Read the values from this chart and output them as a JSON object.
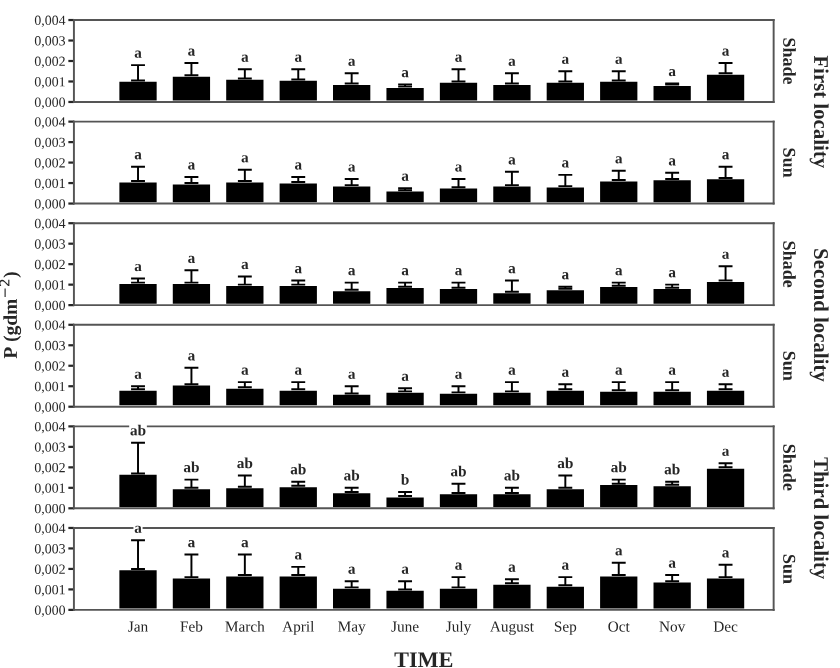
{
  "chart_data": [
    {
      "type": "bar",
      "categories": [
        null,
        null,
        null,
        null,
        null,
        null,
        null,
        null,
        null,
        null,
        null,
        null
      ],
      "color": "#000000",
      "tick_labels": "y",
      "values": [
        0.00105,
        0.0013,
        0.00115,
        0.0011,
        0.0009,
        0.00075,
        0.001,
        0.0009,
        0.001,
        0.00105,
        0.00085,
        0.0014
      ],
      "errors": [
        [
          0.00105,
          0.0018
        ],
        [
          0.0013,
          0.0019
        ],
        [
          0.00115,
          0.0016
        ],
        [
          0.0011,
          0.0016
        ],
        [
          0.0009,
          0.0014
        ],
        [
          0.00075,
          0.00085
        ],
        [
          0.001,
          0.0016
        ],
        [
          0.0009,
          0.0014
        ],
        [
          0.001,
          0.0015
        ],
        [
          0.00105,
          0.0015
        ],
        [
          0.00085,
          0.0009
        ],
        [
          0.0014,
          0.0019
        ]
      ],
      "value_labels": [
        "a",
        "a",
        "a",
        "a",
        "a",
        "a",
        "a",
        "a",
        "a",
        "a",
        "a",
        "a"
      ],
      "ylim": [
        0,
        0.004
      ],
      "yticks": [
        {
          "value": 0,
          "label": "0,000"
        },
        {
          "value": 0.001,
          "label": "0,001"
        },
        {
          "value": 0.002,
          "label": "0,002"
        },
        {
          "value": 0.003,
          "label": "0,003"
        },
        {
          "value": 0.004,
          "label": "0,004"
        }
      ],
      "annotations": [
        "Shade",
        "First locality"
      ]
    },
    {
      "type": "bar",
      "categories": [
        null,
        null,
        null,
        null,
        null,
        null,
        null,
        null,
        null,
        null,
        null,
        null
      ],
      "color": "#000000",
      "tick_labels": "y",
      "values": [
        0.0011,
        0.001,
        0.0011,
        0.00105,
        0.0009,
        0.00065,
        0.0008,
        0.0009,
        0.00085,
        0.00115,
        0.0012,
        0.00125
      ],
      "errors": [
        [
          0.0011,
          0.0018
        ],
        [
          0.001,
          0.0013
        ],
        [
          0.0011,
          0.00165
        ],
        [
          0.00105,
          0.0013
        ],
        [
          0.0009,
          0.0012
        ],
        [
          0.00065,
          0.00075
        ],
        [
          0.0008,
          0.0012
        ],
        [
          0.0009,
          0.00155
        ],
        [
          0.00085,
          0.0014
        ],
        [
          0.00115,
          0.0016
        ],
        [
          0.0012,
          0.0015
        ],
        [
          0.00125,
          0.0018
        ]
      ],
      "value_labels": [
        "a",
        "a",
        "a",
        "a",
        "a",
        "a",
        "a",
        "a",
        "a",
        "a",
        "a",
        "a"
      ],
      "ylim": [
        0,
        0.004
      ],
      "yticks": [
        {
          "value": 0,
          "label": "0,000"
        },
        {
          "value": 0.001,
          "label": "0,001"
        },
        {
          "value": 0.002,
          "label": "0,002"
        },
        {
          "value": 0.003,
          "label": "0,003"
        },
        {
          "value": 0.004,
          "label": "0,004"
        }
      ],
      "annotations": [
        "Sun"
      ]
    },
    {
      "type": "bar",
      "categories": [
        null,
        null,
        null,
        null,
        null,
        null,
        null,
        null,
        null,
        null,
        null,
        null
      ],
      "color": "#000000",
      "tick_labels": "y",
      "values": [
        0.0011,
        0.0011,
        0.001,
        0.001,
        0.00075,
        0.0009,
        0.00085,
        0.00065,
        0.0008,
        0.00095,
        0.00085,
        0.0012
      ],
      "errors": [
        [
          0.0011,
          0.0013
        ],
        [
          0.0011,
          0.0017
        ],
        [
          0.001,
          0.0014
        ],
        [
          0.001,
          0.0012
        ],
        [
          0.00075,
          0.0011
        ],
        [
          0.0009,
          0.0011
        ],
        [
          0.00085,
          0.0011
        ],
        [
          0.00065,
          0.0012
        ],
        [
          0.0008,
          0.0009
        ],
        [
          0.00095,
          0.0011
        ],
        [
          0.00085,
          0.001
        ],
        [
          0.0012,
          0.0019
        ]
      ],
      "value_labels": [
        "a",
        "a",
        "a",
        "a",
        "a",
        "a",
        "a",
        "a",
        "a",
        "a",
        "a",
        "a"
      ],
      "ylim": [
        0,
        0.004
      ],
      "yticks": [
        {
          "value": 0,
          "label": "0,000"
        },
        {
          "value": 0.001,
          "label": "0,001"
        },
        {
          "value": 0.002,
          "label": "0,002"
        },
        {
          "value": 0.003,
          "label": "0,003"
        },
        {
          "value": 0.004,
          "label": "0,004"
        }
      ],
      "ylabel": "P (gdm$^{−2}$)",
      "annotations": [
        "Shade",
        "Second locality"
      ]
    },
    {
      "type": "bar",
      "categories": [
        null,
        null,
        null,
        null,
        null,
        null,
        null,
        null,
        null,
        null,
        null,
        null
      ],
      "color": "#000000",
      "tick_labels": "y",
      "values": [
        0.00085,
        0.0011,
        0.00095,
        0.00085,
        0.00065,
        0.00075,
        0.0007,
        0.00075,
        0.00085,
        0.0008,
        0.0008,
        0.00085
      ],
      "errors": [
        [
          0.00085,
          0.001
        ],
        [
          0.0011,
          0.0019
        ],
        [
          0.00095,
          0.0012
        ],
        [
          0.00085,
          0.0012
        ],
        [
          0.00065,
          0.001
        ],
        [
          0.00075,
          0.0009
        ],
        [
          0.0007,
          0.001
        ],
        [
          0.00075,
          0.0012
        ],
        [
          0.00085,
          0.0011
        ],
        [
          0.0008,
          0.0012
        ],
        [
          0.0008,
          0.0012
        ],
        [
          0.00085,
          0.0011
        ]
      ],
      "value_labels": [
        "a",
        "a",
        "a",
        "a",
        "a",
        "a",
        "a",
        "a",
        "a",
        "a",
        "a",
        "a"
      ],
      "ylim": [
        0,
        0.004
      ],
      "yticks": [
        {
          "value": 0,
          "label": "0,000"
        },
        {
          "value": 0.001,
          "label": "0,001"
        },
        {
          "value": 0.002,
          "label": "0,002"
        },
        {
          "value": 0.003,
          "label": "0,003"
        },
        {
          "value": 0.004,
          "label": "0,004"
        }
      ],
      "annotations": [
        "Sun"
      ]
    },
    {
      "type": "bar",
      "categories": [
        null,
        null,
        null,
        null,
        null,
        null,
        null,
        null,
        null,
        null,
        null,
        null
      ],
      "color": "#000000",
      "tick_labels": "y",
      "values": [
        0.0017,
        0.001,
        0.00105,
        0.0011,
        0.0008,
        0.0006,
        0.00075,
        0.00075,
        0.001,
        0.0012,
        0.00115,
        0.002
      ],
      "errors": [
        [
          0.0017,
          0.0032
        ],
        [
          0.001,
          0.0014
        ],
        [
          0.00105,
          0.0016
        ],
        [
          0.0011,
          0.0013
        ],
        [
          0.0008,
          0.001
        ],
        [
          0.0006,
          0.0008
        ],
        [
          0.00075,
          0.0012
        ],
        [
          0.00075,
          0.001
        ],
        [
          0.001,
          0.0016
        ],
        [
          0.0012,
          0.0014
        ],
        [
          0.00115,
          0.0013
        ],
        [
          0.002,
          0.0022
        ]
      ],
      "value_labels": [
        "ab",
        "ab",
        "ab",
        "ab",
        "ab",
        "b",
        "ab",
        "ab",
        "ab",
        "ab",
        "ab",
        "a"
      ],
      "ylim": [
        0,
        0.004
      ],
      "yticks": [
        {
          "value": 0,
          "label": "0,000"
        },
        {
          "value": 0.001,
          "label": "0,001"
        },
        {
          "value": 0.002,
          "label": "0,002"
        },
        {
          "value": 0.003,
          "label": "0,003"
        },
        {
          "value": 0.004,
          "label": "0,004"
        }
      ],
      "annotations": [
        "Shade",
        "Third locality"
      ]
    },
    {
      "type": "bar",
      "categories": [
        "Jan",
        "Feb",
        "March",
        "April",
        "May",
        "June",
        "July",
        "August",
        "Sep",
        "Oct",
        "Nov",
        "Dec"
      ],
      "color": "#000000",
      "values": [
        0.002,
        0.0016,
        0.0017,
        0.0017,
        0.0011,
        0.001,
        0.0011,
        0.0013,
        0.0012,
        0.0017,
        0.0014,
        0.0016
      ],
      "errors": [
        [
          0.002,
          0.0034
        ],
        [
          0.0016,
          0.0027
        ],
        [
          0.0017,
          0.0027
        ],
        [
          0.0017,
          0.0021
        ],
        [
          0.0011,
          0.0014
        ],
        [
          0.001,
          0.0014
        ],
        [
          0.0011,
          0.0016
        ],
        [
          0.0013,
          0.0015
        ],
        [
          0.0012,
          0.0016
        ],
        [
          0.0017,
          0.0023
        ],
        [
          0.0014,
          0.0017
        ],
        [
          0.0016,
          0.0022
        ]
      ],
      "value_labels": [
        "a",
        "a",
        "a",
        "a",
        "a",
        "a",
        "a",
        "a",
        "a",
        "a",
        "a",
        "a"
      ],
      "ylim": [
        0,
        0.004
      ],
      "yticks": [
        {
          "value": 0,
          "label": "0,000"
        },
        {
          "value": 0.001,
          "label": "0,001"
        },
        {
          "value": 0.002,
          "label": "0,002"
        },
        {
          "value": 0.003,
          "label": "0,003"
        },
        {
          "value": 0.004,
          "label": "0,004"
        }
      ],
      "xlabel": "TIME",
      "annotations": [
        "Sun"
      ]
    }
  ]
}
